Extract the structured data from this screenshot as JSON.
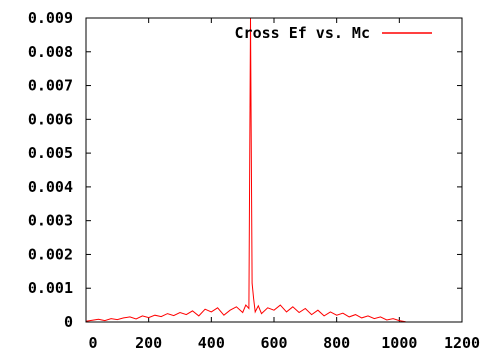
{
  "chart_data": {
    "type": "line",
    "series": [
      {
        "name": "Cross Ef vs. Mc",
        "color": "#ff0000",
        "x": [
          0,
          20,
          40,
          60,
          80,
          100,
          120,
          140,
          160,
          180,
          200,
          220,
          240,
          260,
          280,
          300,
          320,
          340,
          360,
          380,
          400,
          420,
          440,
          460,
          480,
          500,
          510,
          520,
          525,
          530,
          535,
          540,
          550,
          560,
          580,
          600,
          620,
          640,
          660,
          680,
          700,
          720,
          740,
          760,
          780,
          800,
          820,
          840,
          860,
          880,
          900,
          920,
          940,
          960,
          980,
          1000,
          1020
        ],
        "y": [
          2e-05,
          5e-05,
          8e-05,
          4e-05,
          0.0001,
          7e-05,
          0.00012,
          0.00015,
          9e-05,
          0.00018,
          0.00013,
          0.0002,
          0.00016,
          0.00025,
          0.00019,
          0.00028,
          0.00022,
          0.00033,
          0.00018,
          0.00038,
          0.0003,
          0.00042,
          0.0002,
          0.00035,
          0.00045,
          0.00028,
          0.0005,
          0.0004,
          0.009,
          0.00115,
          0.0007,
          0.0003,
          0.00048,
          0.00025,
          0.00042,
          0.00035,
          0.0005,
          0.0003,
          0.00045,
          0.00028,
          0.0004,
          0.00022,
          0.00035,
          0.00018,
          0.0003,
          0.0002,
          0.00026,
          0.00015,
          0.00022,
          0.00012,
          0.00018,
          0.0001,
          0.00015,
          6e-05,
          0.0001,
          4e-05,
          1e-05
        ]
      }
    ],
    "xlim": [
      0,
      1200
    ],
    "ylim": [
      0,
      0.009
    ],
    "x_ticks": [
      0,
      200,
      400,
      600,
      800,
      1000,
      1200
    ],
    "x_tick_labels": [
      "0",
      "200",
      "400",
      "600",
      "800",
      "1000",
      "1200"
    ],
    "y_ticks": [
      0,
      0.001,
      0.002,
      0.003,
      0.004,
      0.005,
      0.006,
      0.007,
      0.008,
      0.009
    ],
    "y_tick_labels": [
      "0",
      "0.001",
      "0.002",
      "0.003",
      "0.004",
      "0.005",
      "0.006",
      "0.007",
      "0.008",
      "0.009"
    ],
    "title": "",
    "xlabel": "",
    "ylabel": "",
    "grid": false,
    "legend": "top-right"
  }
}
